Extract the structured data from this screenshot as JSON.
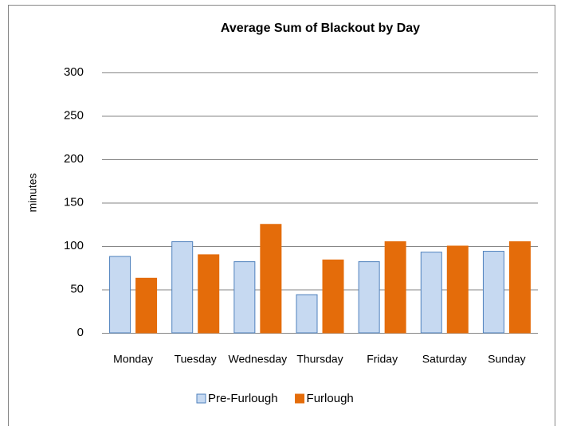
{
  "chart_data": {
    "type": "bar",
    "title": "Average Sum of Blackout by Day",
    "y_label": "minutes",
    "categories": [
      "Monday",
      "Tuesday",
      "Wednesday",
      "Thursday",
      "Friday",
      "Saturday",
      "Sunday"
    ],
    "series": [
      {
        "name": "Pre-Furlough",
        "color": "#c6d9f1",
        "values": [
          88,
          105,
          82,
          44,
          82,
          93,
          94
        ]
      },
      {
        "name": "Furlough",
        "color": "#e46c0a",
        "values": [
          63,
          90,
          125,
          84,
          105,
          100,
          105
        ]
      }
    ],
    "ylim": [
      0,
      300
    ],
    "yticks": [
      0,
      50,
      100,
      150,
      200,
      250,
      300
    ],
    "grid": true,
    "legend": "bottom"
  }
}
